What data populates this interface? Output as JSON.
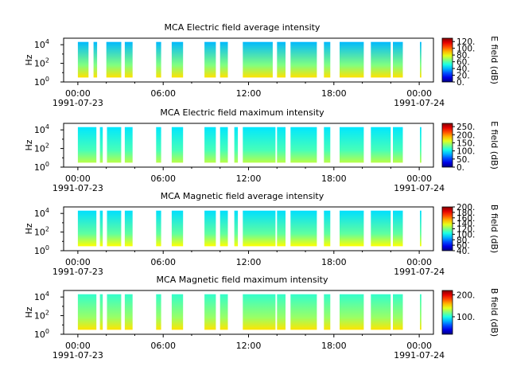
{
  "figure": {
    "background": "#ffffff"
  },
  "chart_data": [
    {
      "type": "heatmap",
      "title": "MCA  Electric field average intensity",
      "ylabel": "Hz",
      "colorbar_label": "E field (dB)",
      "colorbar_ticks": [
        "0.",
        "20.",
        "40.",
        "60.",
        "80.",
        "100.",
        "120."
      ],
      "colorbar_range": [
        0,
        130
      ],
      "y_scale": "log",
      "y_ticks": [
        {
          "base": "10",
          "exp": "0"
        },
        {
          "base": "10",
          "exp": "2"
        },
        {
          "base": "10",
          "exp": "4"
        }
      ],
      "x_ticks": [
        "00:00",
        "06:00",
        "12:00",
        "18:00",
        "00:00"
      ],
      "x_dates": [
        "1991-07-23",
        "1991-07-24"
      ],
      "x_range_hours": [
        -1,
        25
      ],
      "spectrogram_freq_range_hz": [
        3,
        20000
      ],
      "data_intervals_hours": [
        [
          0.0,
          0.75
        ],
        [
          1.1,
          1.35
        ],
        [
          2.0,
          3.05
        ],
        [
          3.3,
          3.85
        ],
        [
          5.5,
          5.85
        ],
        [
          6.6,
          7.4
        ],
        [
          8.9,
          9.7
        ],
        [
          10.0,
          10.55
        ],
        [
          11.6,
          13.7
        ],
        [
          14.0,
          14.6
        ],
        [
          14.95,
          16.8
        ],
        [
          17.3,
          17.75
        ],
        [
          18.4,
          20.1
        ],
        [
          20.6,
          22.0
        ],
        [
          22.15,
          22.85
        ],
        [
          24.05,
          24.15
        ]
      ],
      "level_db": [
        40,
        65,
        85
      ]
    },
    {
      "type": "heatmap",
      "title": "MCA  Electric field maximum intensity",
      "ylabel": "Hz",
      "colorbar_label": "E field (dB)",
      "colorbar_ticks": [
        "0.",
        "50.",
        "100.",
        "150.",
        "200.",
        "250."
      ],
      "colorbar_range": [
        0,
        270
      ],
      "y_scale": "log",
      "y_ticks": [
        {
          "base": "10",
          "exp": "0"
        },
        {
          "base": "10",
          "exp": "2"
        },
        {
          "base": "10",
          "exp": "4"
        }
      ],
      "x_ticks": [
        "00:00",
        "06:00",
        "12:00",
        "18:00",
        "00:00"
      ],
      "x_dates": [
        "1991-07-23",
        "1991-07-24"
      ],
      "x_range_hours": [
        -1,
        25
      ],
      "spectrogram_freq_range_hz": [
        3,
        20000
      ],
      "data_intervals_hours": [
        [
          0.0,
          1.3
        ],
        [
          1.55,
          1.75
        ],
        [
          2.05,
          3.05
        ],
        [
          3.3,
          3.85
        ],
        [
          5.5,
          5.85
        ],
        [
          6.6,
          7.4
        ],
        [
          8.9,
          9.7
        ],
        [
          10.0,
          10.55
        ],
        [
          11.0,
          11.25
        ],
        [
          11.6,
          13.9
        ],
        [
          14.0,
          14.6
        ],
        [
          14.95,
          16.8
        ],
        [
          17.3,
          17.75
        ],
        [
          18.4,
          20.1
        ],
        [
          20.6,
          22.0
        ],
        [
          22.15,
          22.85
        ],
        [
          24.05,
          24.15
        ]
      ],
      "level_db": [
        95,
        120,
        150
      ]
    },
    {
      "type": "heatmap",
      "title": "MCA  Magnetic field average intensity",
      "ylabel": "Hz",
      "colorbar_label": "B field (dB)",
      "colorbar_ticks": [
        "40.",
        "60.",
        "80.",
        "100.",
        "120.",
        "140.",
        "160.",
        "180.",
        "200."
      ],
      "colorbar_range": [
        40,
        200
      ],
      "y_scale": "log",
      "y_ticks": [
        {
          "base": "10",
          "exp": "0"
        },
        {
          "base": "10",
          "exp": "2"
        },
        {
          "base": "10",
          "exp": "4"
        }
      ],
      "x_ticks": [
        "00:00",
        "06:00",
        "12:00",
        "18:00",
        "00:00"
      ],
      "x_dates": [
        "1991-07-23",
        "1991-07-24"
      ],
      "x_range_hours": [
        -1,
        25
      ],
      "spectrogram_freq_range_hz": [
        3,
        20000
      ],
      "data_intervals_hours": [
        [
          0.0,
          1.3
        ],
        [
          1.55,
          1.75
        ],
        [
          2.05,
          3.05
        ],
        [
          3.3,
          3.85
        ],
        [
          5.5,
          5.85
        ],
        [
          6.6,
          7.4
        ],
        [
          8.9,
          9.7
        ],
        [
          10.0,
          10.55
        ],
        [
          11.0,
          11.25
        ],
        [
          11.6,
          13.9
        ],
        [
          14.0,
          14.6
        ],
        [
          14.95,
          16.8
        ],
        [
          17.3,
          17.75
        ],
        [
          18.4,
          20.1
        ],
        [
          20.6,
          22.0
        ],
        [
          22.15,
          22.85
        ],
        [
          24.05,
          24.15
        ]
      ],
      "level_db": [
        95,
        115,
        140
      ]
    },
    {
      "type": "heatmap",
      "title": "MCA  Magnetic field maximum intensity",
      "ylabel": "Hz",
      "colorbar_label": "B field (dB)",
      "colorbar_ticks": [
        "100.",
        "200."
      ],
      "colorbar_range": [
        20,
        220
      ],
      "y_scale": "log",
      "y_ticks": [
        {
          "base": "10",
          "exp": "0"
        },
        {
          "base": "10",
          "exp": "2"
        },
        {
          "base": "10",
          "exp": "4"
        }
      ],
      "x_ticks": [
        "00:00",
        "06:00",
        "12:00",
        "18:00",
        "00:00"
      ],
      "x_dates": [
        "1991-07-23",
        "1991-07-24"
      ],
      "x_range_hours": [
        -1,
        25
      ],
      "spectrogram_freq_range_hz": [
        3,
        20000
      ],
      "data_intervals_hours": [
        [
          0.0,
          1.3
        ],
        [
          1.55,
          1.75
        ],
        [
          2.05,
          3.05
        ],
        [
          3.3,
          3.85
        ],
        [
          5.5,
          5.85
        ],
        [
          6.6,
          7.4
        ],
        [
          8.9,
          9.7
        ],
        [
          10.0,
          10.55
        ],
        [
          11.6,
          13.9
        ],
        [
          14.0,
          14.6
        ],
        [
          14.95,
          16.8
        ],
        [
          17.3,
          17.75
        ],
        [
          18.4,
          20.1
        ],
        [
          20.6,
          22.0
        ],
        [
          22.15,
          22.85
        ],
        [
          24.05,
          24.15
        ]
      ],
      "level_db": [
        105,
        125,
        150
      ]
    }
  ]
}
